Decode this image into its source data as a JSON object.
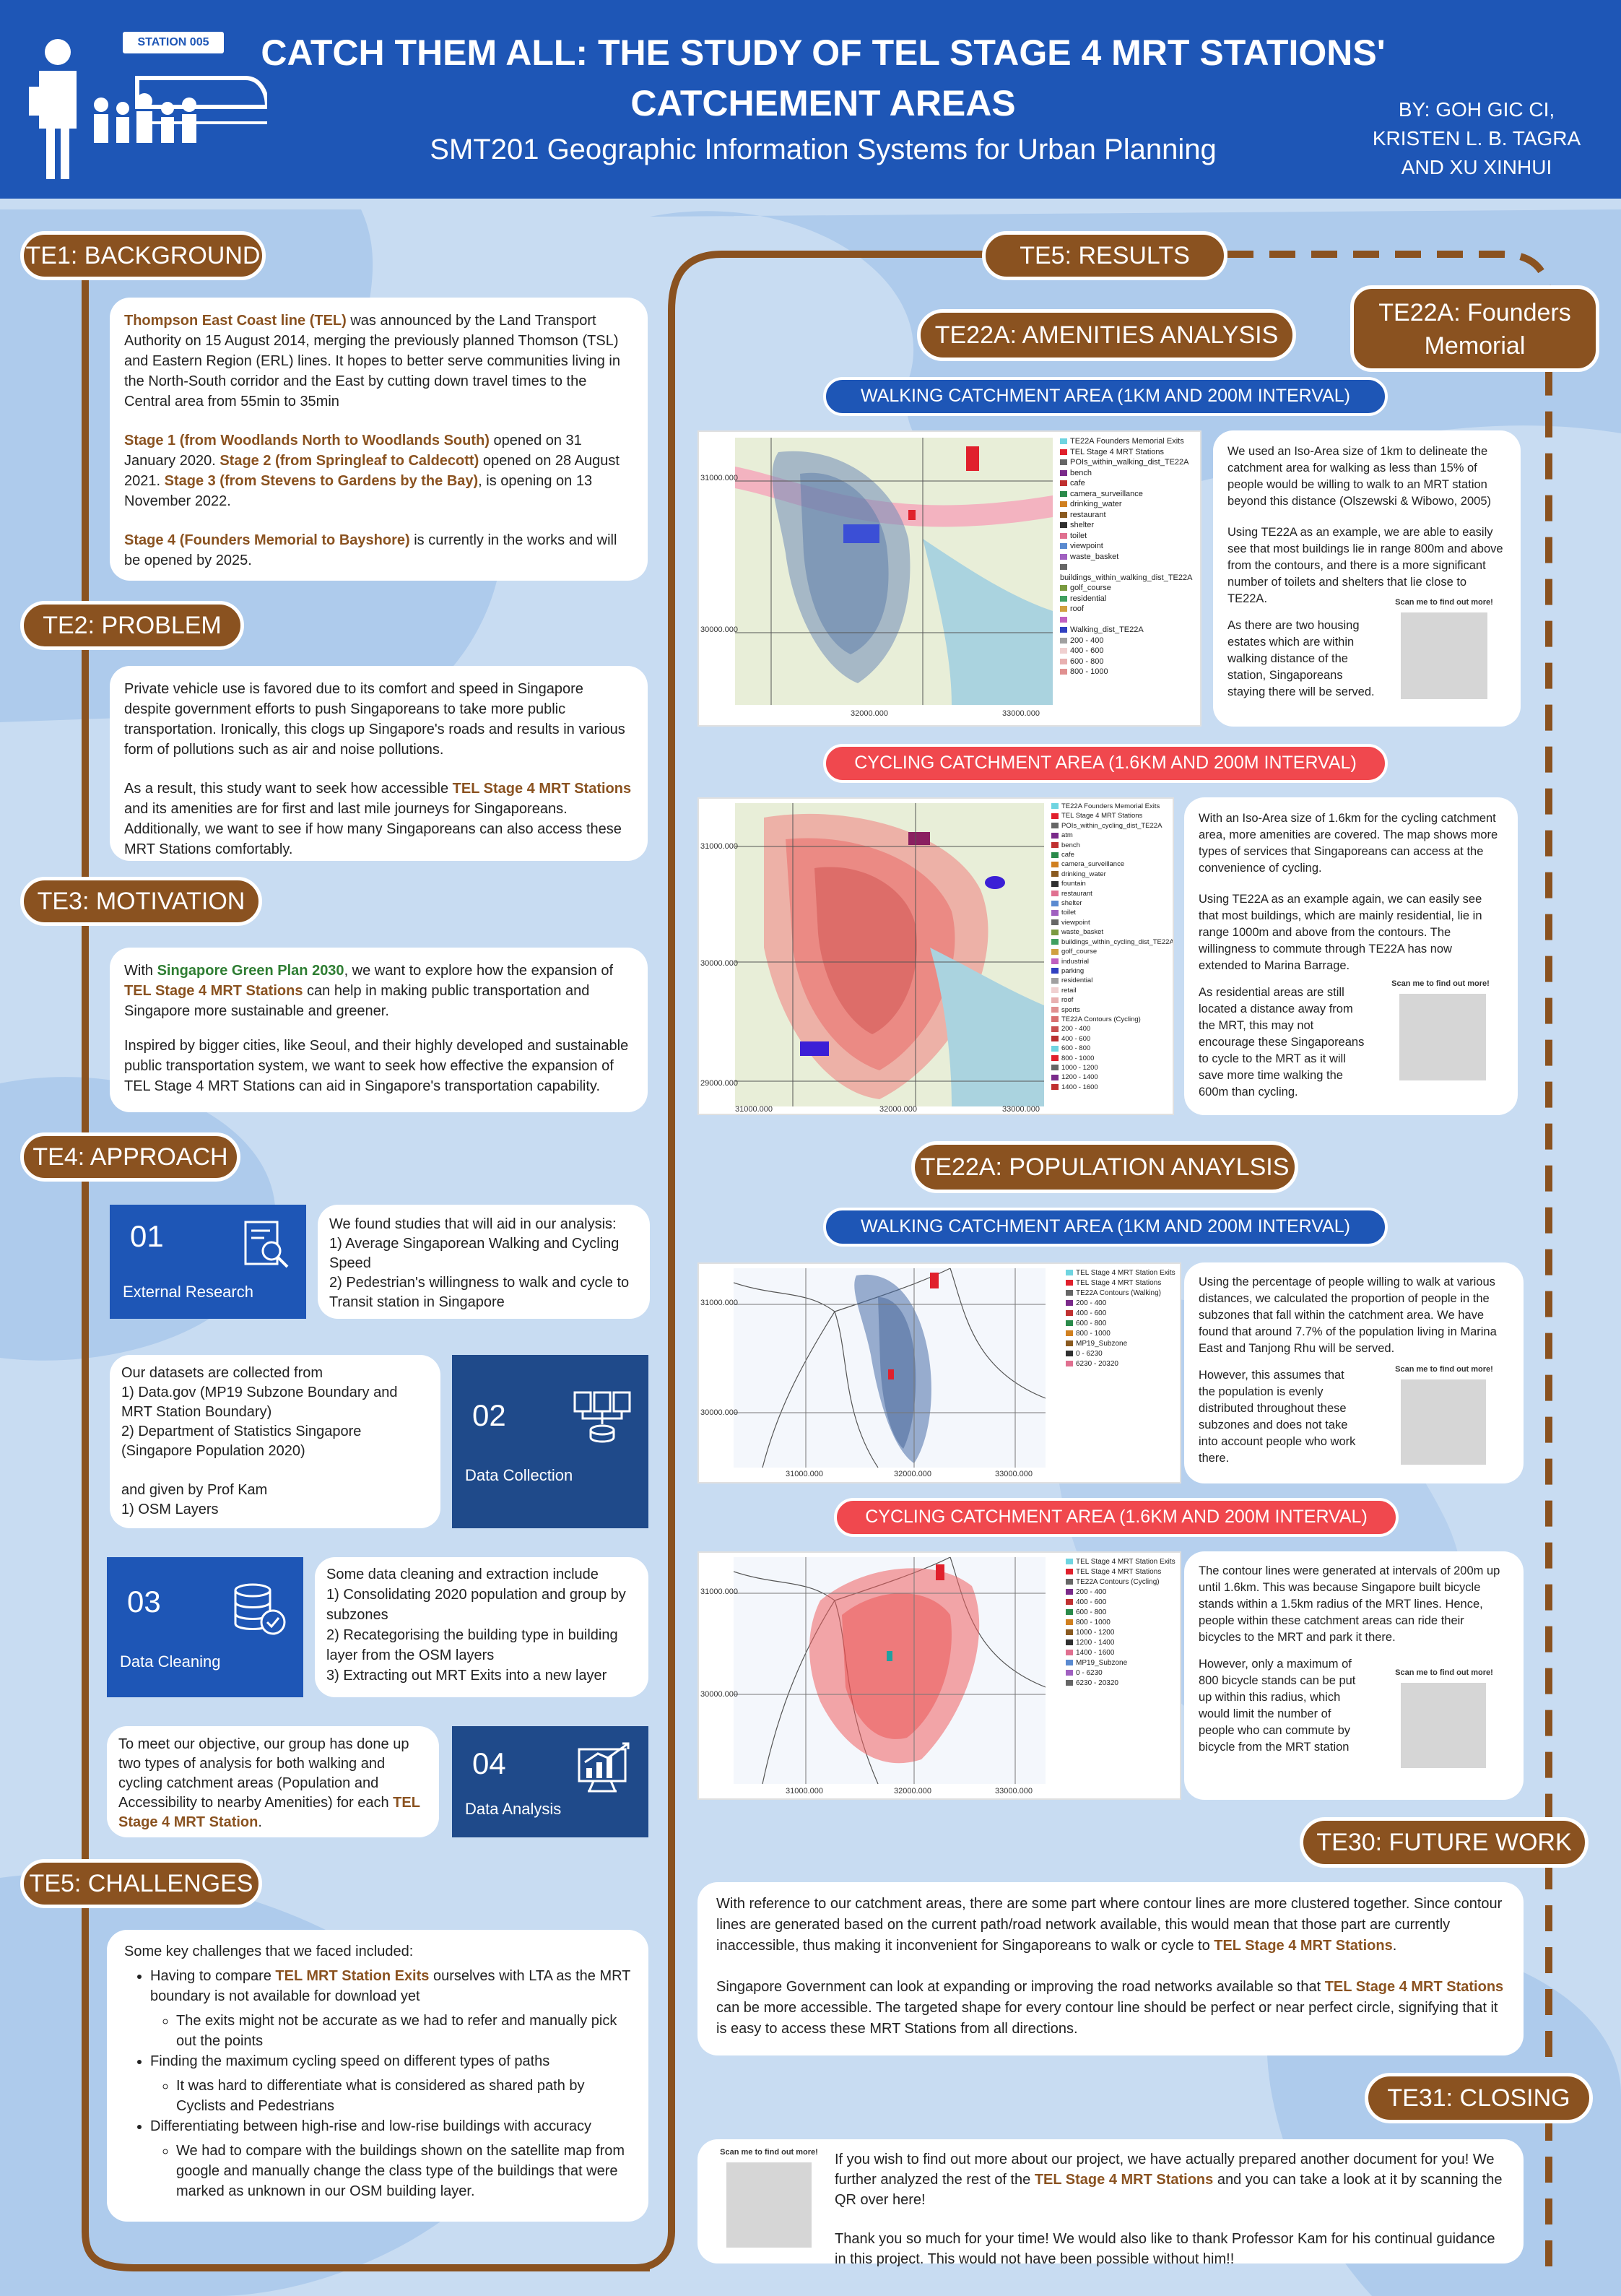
{
  "header": {
    "station_tag": "STATION 005",
    "title": "CATCH THEM ALL: THE STUDY OF TEL STAGE 4 MRT STATIONS' CATCHEMENT AREAS",
    "subtitle": "SMT201 Geographic Information Systems for Urban Planning",
    "authors": "BY: GOH GIC CI, KRISTEN L. B. TAGRA AND XU XINHUI"
  },
  "colors": {
    "header_blue": "#1e56b6",
    "accent_brown": "#8a5220",
    "background": "#c8dcf2",
    "cycling_red": "#f0484e"
  },
  "te1": {
    "heading": "TE1: BACKGROUND",
    "p1_hl": "Thompson East Coast line (TEL)",
    "p1_rest": " was announced by the Land Transport Authority on 15 August 2014, merging the previously planned Thomson (TSL) and Eastern Region (ERL) lines. It hopes to better serve communities living in the North-South corridor and the East by cutting down travel times to the Central area from 55min to 35min",
    "p2_hl1": "Stage 1 (from Woodlands North to Woodlands South)",
    "p2_t1": " opened on 31 January 2020. ",
    "p2_hl2": "Stage 2 (from Springleaf to Caldecott)",
    "p2_t2": " opened on 28 August 2021. ",
    "p2_hl3": "Stage 3 (from Stevens to Gardens by the Bay)",
    "p2_t3": ", is opening on 13 November 2022.",
    "p3_hl": "Stage 4 (Founders Memorial to Bayshore)",
    "p3_rest": " is currently in the works and will be opened by 2025."
  },
  "te2": {
    "heading": "TE2: PROBLEM",
    "p1": "Private vehicle use is favored due to its comfort and speed in Singapore despite government efforts to push Singaporeans to take more public transportation. Ironically, this clogs up Singapore's roads and results in various form of pollutions such as air and noise pollutions.",
    "p2_t1": "As a result, this study want to seek how accessible ",
    "p2_hl": "TEL Stage 4 MRT Stations",
    "p2_t2": " and its amenities are for first and last mile journeys for Singaporeans. Additionally, we want to see if how many Singaporeans can also access these MRT Stations comfortably."
  },
  "te3": {
    "heading": "TE3: MOTIVATION",
    "p1_t1": "With ",
    "p1_hlg": "Singapore Green Plan 2030",
    "p1_t2": ", we want to explore how the expansion of ",
    "p1_hl": "TEL Stage 4 MRT Stations",
    "p1_t3": " can help in making public transportation and Singapore more sustainable and greener.",
    "p2": "Inspired by bigger cities, like Seoul, and their highly developed and sustainable public transportation system, we want to seek how effective the expansion of TEL Stage 4 MRT Stations can aid in Singapore's transportation capability."
  },
  "te4": {
    "heading": "TE4: APPROACH",
    "step1": {
      "num": "01",
      "label": "External Research",
      "text_intro": "We found studies that will aid in our analysis:",
      "items": [
        "1) Average Singaporean Walking and Cycling Speed",
        "2) Pedestrian's willingness to walk and cycle to Transit station in Singapore"
      ]
    },
    "step2": {
      "num": "02",
      "label": "Data Collection",
      "lines": [
        "Our datasets are collected from",
        "1) Data.gov (MP19 Subzone Boundary and MRT Station Boundary)",
        "2) Department of Statistics Singapore (Singapore Population 2020)",
        "",
        "and given by Prof Kam",
        "1) OSM Layers"
      ]
    },
    "step3": {
      "num": "03",
      "label": "Data Cleaning",
      "lines": [
        "Some data cleaning and extraction include",
        "1) Consolidating 2020 population and group by subzones",
        "2) Recategorising the building type in building layer from the OSM layers",
        "3) Extracting out MRT Exits into a new layer"
      ]
    },
    "step4": {
      "num": "04",
      "label": "Data Analysis",
      "t1": "To meet our objective, our group has done up two types of analysis for both walking and cycling catchment areas (Population and Accessibility to nearby Amenities) for each ",
      "hl": "TEL Stage 4 MRT Station",
      "t2": "."
    }
  },
  "te5c": {
    "heading": "TE5: CHALLENGES",
    "intro": "Some key challenges that we faced included:",
    "b1_t1": "Having to compare ",
    "b1_hl": "TEL MRT Station Exits",
    "b1_t2": " ourselves with LTA as the MRT boundary is not available for download yet",
    "b1_sub": "The exits might not be accurate as we had to refer and manually pick out the points",
    "b2": "Finding the maximum cycling speed on different types of paths",
    "b2_sub": "It was hard to differentiate what is considered as shared path by Cyclists and Pedestrians",
    "b3": "Differentiating between high-rise and low-rise buildings with accuracy",
    "b3_sub": "We had to compare with the buildings shown on the satellite map from google and manually change the class type of the buildings that were marked as unknown in our OSM building layer."
  },
  "results": {
    "heading": "TE5: RESULTS",
    "founders": "TE22A: Founders Memorial",
    "amenities_heading": "TE22A: AMENITIES ANALYSIS",
    "population_heading": "TE22A: POPULATION ANAYLSIS",
    "walk_banner": "WALKING CATCHMENT AREA (1KM AND 200M INTERVAL)",
    "cycle_banner": "CYCLING CATCHMENT AREA (1.6KM AND 200M INTERVAL)",
    "qr_label": "Scan me to find out more!",
    "am_walk_text": [
      "We used an Iso-Area size of 1km to delineate the catchment area for walking as less than 15% of people would be willing to walk to an MRT station beyond this distance (Olszewski & Wibowo, 2005)",
      "Using TE22A as an example, we are able to easily see that most buildings lie in range 800m and above from the contours, and there is a more significant number of toilets and shelters that lie close to TE22A.",
      "As there are two housing estates which are within walking distance of the station, Singaporeans staying there will be served."
    ],
    "am_cycle_text": [
      "With an Iso-Area size of 1.6km for the cycling catchment area, more amenities are covered. The map shows more types of services that Singaporeans can access at the convenience of cycling.",
      "Using TE22A as an example again, we can easily see that most buildings, which are mainly residential, lie in range 1000m and above from the contours. The willingness to commute through TE22A has now extended to  Marina Barrage.",
      "As residential areas are still located a distance away from the MRT, this may not encourage these Singaporeans to cycle to the MRT as it will save more time walking the 600m than cycling."
    ],
    "pop_walk_text": [
      "Using the percentage of people willing to walk at various distances, we calculated the proportion of people in the subzones that fall within the catchment area. We have found that around 7.7% of the population living in Marina East and Tanjong Rhu will be served.",
      "However, this assumes that the population is evenly distributed throughout these subzones and does not take into account people who work there."
    ],
    "pop_cycle_text": [
      "The contour lines were generated at intervals of 200m up until 1.6km. This was because Singapore built bicycle stands within a 1.5km radius of the MRT lines. Hence, people within these catchment areas can ride their bicycles to the MRT and park it there.",
      "However, only a maximum of 800 bicycle stands can be put up within this radius, which would limit the number of people who can commute by bicycle from the MRT station"
    ]
  },
  "maps": {
    "m1": {
      "legend": [
        "TE22A Founders Memorial Exits",
        "TEL Stage 4 MRT Stations",
        "POIs_within_walking_dist_TE22A",
        "bench",
        "cafe",
        "camera_surveillance",
        "drinking_water",
        "restaurant",
        "shelter",
        "toilet",
        "viewpoint",
        "waste_basket",
        "buildings_within_walking_dist_TE22A",
        "golf_course",
        "residential",
        "roof",
        "",
        "Walking_dist_TE22A",
        "200 - 400",
        "400 - 600",
        "600 - 800",
        "800 - 1000"
      ],
      "y_ticks": [
        "31000.000",
        "30000.000"
      ],
      "x_ticks": [
        "32000.000",
        "33000.000"
      ]
    },
    "m2": {
      "legend": [
        "TE22A Founders Memorial Exits",
        "TEL Stage 4 MRT Stations",
        "POIs_within_cycling_dist_TE22A",
        "atm",
        "bench",
        "cafe",
        "camera_surveillance",
        "drinking_water",
        "fountain",
        "restaurant",
        "shelter",
        "toilet",
        "viewpoint",
        "waste_basket",
        "buildings_within_cycling_dist_TE22A",
        "golf_course",
        "industrial",
        "parking",
        "residential",
        "retail",
        "roof",
        "sports",
        "TE22A Contours (Cycling)",
        "200 - 400",
        "400 - 600",
        "600 - 800",
        "800 - 1000",
        "1000 - 1200",
        "1200 - 1400",
        "1400 - 1600"
      ],
      "y_ticks": [
        "31000.000",
        "30000.000",
        "29000.000"
      ],
      "x_ticks": [
        "31000.000",
        "32000.000",
        "33000.000"
      ]
    },
    "m3": {
      "legend": [
        "TEL Stage 4 MRT Station Exits",
        "TEL Stage 4 MRT Stations",
        "TE22A Contours (Walking)",
        "200 - 400",
        "400 - 600",
        "600 - 800",
        "800 - 1000",
        "MP19_Subzone",
        "0 - 6230",
        "6230 - 20320"
      ],
      "y_ticks": [
        "31000.000",
        "30000.000"
      ],
      "x_ticks": [
        "31000.000",
        "32000.000",
        "33000.000"
      ]
    },
    "m4": {
      "legend": [
        "TEL Stage 4 MRT Station Exits",
        "TEL Stage 4 MRT Stations",
        "TE22A Contours (Cycling)",
        "200 - 400",
        "400 - 600",
        "600 - 800",
        "800 - 1000",
        "1000 - 1200",
        "1200 - 1400",
        "1400 - 1600",
        "MP19_Subzone",
        "0 - 6230",
        "6230 - 20320"
      ],
      "y_ticks": [
        "31000.000",
        "30000.000"
      ],
      "x_ticks": [
        "31000.000",
        "32000.000",
        "33000.000"
      ]
    }
  },
  "te30": {
    "heading": "TE30: FUTURE WORK",
    "p1_t1": "With reference to our catchment areas, there are some part where contour lines are more clustered together. Since contour lines are generated based on the current path/road network available, this would mean that those part are currently inaccessible, thus making it inconvenient for Singaporeans to walk or cycle to ",
    "p1_hl": "TEL Stage 4 MRT Stations",
    "p1_t2": ".",
    "p2_t1": "Singapore Government can look at expanding or improving the road networks available so that ",
    "p2_hl": "TEL Stage 4 MRT Stations",
    "p2_t2": " can be more accessible. The targeted shape for every contour line should be perfect or near perfect circle, signifying that it is easy to access these MRT Stations from all directions."
  },
  "te31": {
    "heading": "TE31: CLOSING",
    "p1_t1": "If you wish to find out more about our project, we have actually prepared another document for you! We further analyzed the rest of the ",
    "p1_hl": "TEL Stage 4 MRT Stations",
    "p1_t2": " and you can take a look at it by scanning the QR over here!",
    "p2": "Thank you so much for your time! We would also like to thank Professor Kam for his continual guidance in this project. This would not have been possible without him!!"
  }
}
